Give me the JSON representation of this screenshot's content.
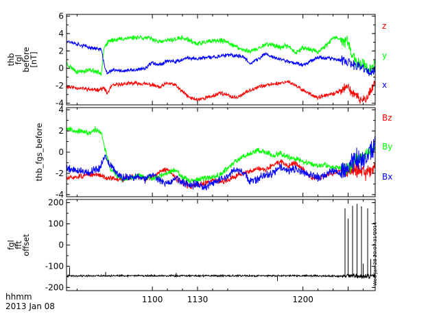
{
  "chart_data": [
    {
      "type": "line",
      "ylabel": [
        "thb",
        "fgl",
        "before",
        "[nT]"
      ],
      "ylim": [
        -4.2,
        6.2
      ],
      "yticks": [
        -4,
        -2,
        0,
        2,
        4,
        6
      ],
      "xlim": [
        1043,
        1248
      ],
      "series": [
        {
          "name": "z",
          "color": "#ff0000",
          "seed": 11,
          "noise": 0.18,
          "x": [
            1043,
            1053,
            1062,
            1068,
            1070,
            1073,
            1080,
            1090,
            1100,
            1105,
            1110,
            1115,
            1120,
            1125,
            1130,
            1135,
            1140,
            1145,
            1150,
            1155,
            1160,
            1165,
            1170,
            1175,
            1180,
            1185,
            1190,
            1200,
            1210,
            1215,
            1220,
            1225,
            1230,
            1235,
            1240,
            1245,
            1248
          ],
          "y": [
            -2.1,
            -2.3,
            -2.5,
            -2.3,
            -2.9,
            -2.0,
            -1.8,
            -1.7,
            -1.9,
            -2.2,
            -1.7,
            -1.9,
            -2.7,
            -3.4,
            -3.6,
            -3.4,
            -3.2,
            -2.8,
            -3.1,
            -3.4,
            -3.0,
            -2.5,
            -2.1,
            -2.0,
            -1.8,
            -1.7,
            -1.5,
            -2.5,
            -3.4,
            -3.1,
            -3.0,
            -2.5,
            -2.2,
            -3.2,
            -3.8,
            -2.6,
            -1.5
          ]
        },
        {
          "name": "y",
          "color": "#00ff00",
          "seed": 23,
          "noise": 0.22,
          "x": [
            1043,
            1050,
            1060,
            1066,
            1068,
            1072,
            1080,
            1090,
            1100,
            1105,
            1110,
            1120,
            1125,
            1130,
            1135,
            1140,
            1145,
            1150,
            1160,
            1165,
            1170,
            1175,
            1180,
            1185,
            1190,
            1195,
            1200,
            1210,
            1215,
            1220,
            1225,
            1230,
            1235,
            1240,
            1245,
            1248
          ],
          "y": [
            0.5,
            -0.4,
            -0.2,
            -0.6,
            2.5,
            3.2,
            3.4,
            3.6,
            3.4,
            3.0,
            3.2,
            3.5,
            3.2,
            2.8,
            3.0,
            3.1,
            3.2,
            3.0,
            2.1,
            2.0,
            2.2,
            2.8,
            2.7,
            2.4,
            2.6,
            1.8,
            2.4,
            1.9,
            2.6,
            3.5,
            3.3,
            3.0,
            0.5,
            0.6,
            -0.2,
            0.3
          ]
        },
        {
          "name": "x",
          "color": "#0000ff",
          "seed": 37,
          "noise": 0.18,
          "x": [
            1043,
            1050,
            1058,
            1066,
            1068,
            1070,
            1073,
            1080,
            1090,
            1095,
            1100,
            1105,
            1110,
            1115,
            1120,
            1125,
            1130,
            1140,
            1150,
            1160,
            1165,
            1170,
            1175,
            1180,
            1190,
            1200,
            1210,
            1220,
            1230,
            1235,
            1240,
            1245,
            1248
          ],
          "y": [
            3.2,
            2.8,
            2.4,
            2.2,
            0.4,
            -0.6,
            -0.2,
            -0.3,
            -0.2,
            0.0,
            0.7,
            0.4,
            0.9,
            0.7,
            1.0,
            1.2,
            1.1,
            1.3,
            1.5,
            1.4,
            0.6,
            1.0,
            1.7,
            1.3,
            0.8,
            0.4,
            1.3,
            1.1,
            0.7,
            0.2,
            0.1,
            -0.6,
            -0.3
          ]
        }
      ]
    },
    {
      "type": "line",
      "ylabel": [
        "thb_fgs_before"
      ],
      "ylim": [
        -4.2,
        4.2
      ],
      "yticks": [
        -4,
        -2,
        0,
        2,
        4
      ],
      "xlim": [
        1043,
        1248
      ],
      "series": [
        {
          "name": "Bz",
          "color": "#ff0000",
          "seed": 51,
          "noise": 0.2,
          "x": [
            1043,
            1050,
            1060,
            1066,
            1070,
            1080,
            1090,
            1095,
            1100,
            1105,
            1110,
            1115,
            1120,
            1125,
            1130,
            1135,
            1140,
            1145,
            1150,
            1155,
            1160,
            1165,
            1170,
            1175,
            1180,
            1185,
            1190,
            1195,
            1200,
            1205,
            1210,
            1215,
            1220,
            1225,
            1230,
            1235,
            1240,
            1245,
            1248
          ],
          "y": [
            -2.5,
            -2.3,
            -2.1,
            -2.2,
            -2.4,
            -2.6,
            -2.2,
            -2.5,
            -2.4,
            -1.8,
            -1.6,
            -2.4,
            -2.9,
            -3.3,
            -3.1,
            -2.9,
            -2.7,
            -2.8,
            -2.6,
            -2.3,
            -2.0,
            -1.8,
            -1.5,
            -1.7,
            -1.2,
            -0.9,
            -1.3,
            -1.0,
            -1.6,
            -2.4,
            -2.5,
            -2.2,
            -2.0,
            -1.7,
            -1.8,
            -1.6,
            -2.0,
            -1.8,
            -1.4
          ]
        },
        {
          "name": "By",
          "color": "#00ff00",
          "seed": 67,
          "noise": 0.2,
          "x": [
            1043,
            1050,
            1058,
            1062,
            1066,
            1068,
            1072,
            1080,
            1090,
            1095,
            1100,
            1110,
            1115,
            1120,
            1125,
            1130,
            1135,
            1140,
            1145,
            1150,
            1155,
            1160,
            1165,
            1170,
            1175,
            1180,
            1185,
            1190,
            1195,
            1200,
            1210,
            1215,
            1220,
            1225,
            1230,
            1235,
            1240,
            1245,
            1248
          ],
          "y": [
            2.3,
            2.0,
            1.8,
            2.1,
            1.9,
            0.6,
            -1.6,
            -2.6,
            -2.2,
            -2.3,
            -2.5,
            -2.0,
            -1.6,
            -2.4,
            -2.8,
            -2.6,
            -2.5,
            -2.3,
            -2.1,
            -1.5,
            -0.9,
            -0.4,
            -0.1,
            0.2,
            0.0,
            -0.3,
            -0.1,
            -0.4,
            -0.6,
            -0.9,
            -1.3,
            -1.2,
            -1.5,
            -1.4,
            -1.6,
            -0.8,
            -0.3,
            0.3,
            0.5
          ]
        },
        {
          "name": "Bx",
          "color": "#0000ff",
          "seed": 79,
          "noise": 0.3,
          "x": [
            1043,
            1050,
            1058,
            1065,
            1068,
            1072,
            1080,
            1090,
            1095,
            1100,
            1105,
            1110,
            1115,
            1120,
            1125,
            1130,
            1135,
            1140,
            1145,
            1150,
            1155,
            1160,
            1165,
            1170,
            1175,
            1180,
            1185,
            1190,
            1195,
            1200,
            1210,
            1215,
            1220,
            1225,
            1230,
            1235,
            1240,
            1245,
            1248
          ],
          "y": [
            -1.5,
            -1.7,
            -1.9,
            -1.5,
            -0.4,
            -1.3,
            -2.4,
            -2.3,
            -2.6,
            -2.0,
            -2.7,
            -3.0,
            -2.5,
            -2.8,
            -3.2,
            -3.0,
            -3.3,
            -2.9,
            -2.6,
            -2.3,
            -1.6,
            -1.9,
            -2.8,
            -2.5,
            -2.2,
            -2.0,
            -1.4,
            -1.8,
            -1.6,
            -1.9,
            -2.4,
            -2.2,
            -1.7,
            -2.0,
            -1.3,
            -0.6,
            -1.0,
            0.2,
            0.6
          ]
        }
      ]
    },
    {
      "type": "line",
      "ylabel": [
        "fgl",
        "fft",
        "offset"
      ],
      "ylim": [
        -215,
        215
      ],
      "yticks": [
        -200,
        -100,
        0,
        100,
        200
      ],
      "xlim": [
        1043,
        1248
      ],
      "series": [
        {
          "name": "",
          "color": "#000000",
          "seed": 91,
          "noise": 3.2,
          "x": [
            1043,
            1100,
            1150,
            1200,
            1220,
            1225,
            1230,
            1235,
            1240,
            1245,
            1248
          ],
          "y": [
            -145,
            -145,
            -145,
            -145,
            -146,
            -148,
            -146,
            -145,
            -148,
            -146,
            -145
          ],
          "spikes": [
            [
              1045,
              40
            ],
            [
              1069,
              18
            ],
            [
              1116,
              14
            ],
            [
              1183,
              -25
            ],
            [
              1228,
              320
            ],
            [
              1230,
              270
            ],
            [
              1233,
              330
            ],
            [
              1236,
              340
            ],
            [
              1239,
              330
            ],
            [
              1240,
              60
            ],
            [
              1243,
              320
            ],
            [
              1245,
              80
            ]
          ]
        }
      ]
    }
  ],
  "x_axis": {
    "ticks": [
      {
        "value": 1100,
        "label": "1100"
      },
      {
        "value": 1130,
        "label": "1130"
      },
      {
        "value": 1200,
        "label": "1200"
      }
    ],
    "labels": [
      "hhmm",
      "2013 Jan 08"
    ]
  },
  "timestamp": "Wed Jan 28 20:07:31 2014"
}
